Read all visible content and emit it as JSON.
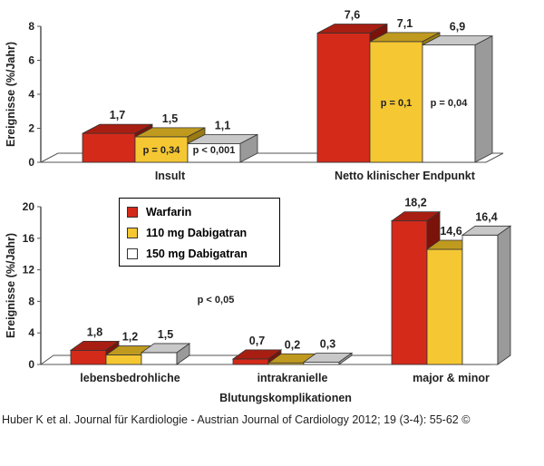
{
  "colors": {
    "warfarin": "#d42a1a",
    "dabi110": "#f5c732",
    "dabi150": "#ffffff"
  },
  "citation": "Huber K et al. Journal für Kardiologie - Austrian Journal of Cardiology 2012; 19 (3-4): 55-62 ©",
  "legend": {
    "items": [
      {
        "label": "Warfarin",
        "color": "#d42a1a"
      },
      {
        "label": "110 mg Dabigatran",
        "color": "#f5c732"
      },
      {
        "label": "150 mg Dabigatran",
        "color": "#ffffff"
      }
    ]
  },
  "chart_data": [
    {
      "type": "bar",
      "ylabel": "Ereignisse (%/Jahr)",
      "ylim": [
        0,
        8
      ],
      "yticks": [
        "0",
        "2",
        "4",
        "6",
        "8"
      ],
      "categories": [
        "Insult",
        "Netto klinischer Endpunkt"
      ],
      "series": [
        {
          "name": "Warfarin",
          "values": [
            1.7,
            7.6
          ],
          "labels": [
            "1,7",
            "7,6"
          ]
        },
        {
          "name": "110 mg Dabigatran",
          "values": [
            1.5,
            7.1
          ],
          "labels": [
            "1,5",
            "7,1"
          ]
        },
        {
          "name": "150 mg Dabigatran",
          "values": [
            1.1,
            6.9
          ],
          "labels": [
            "1,1",
            "6,9"
          ]
        }
      ],
      "annotations": [
        {
          "series": 1,
          "category": 0,
          "text": "p = 0,34"
        },
        {
          "series": 2,
          "category": 0,
          "text": "p < 0,001"
        },
        {
          "series": 1,
          "category": 1,
          "text": "p = 0,1"
        },
        {
          "series": 2,
          "category": 1,
          "text": "p = 0,04"
        }
      ]
    },
    {
      "type": "bar",
      "ylabel": "Ereignisse (%/Jahr)",
      "xlabel": "Blutungskomplikationen",
      "ylim": [
        0,
        20
      ],
      "yticks": [
        "0",
        "4",
        "8",
        "12",
        "16",
        "20"
      ],
      "categories": [
        "lebensbedrohliche",
        "intrakranielle",
        "major & minor"
      ],
      "series": [
        {
          "name": "Warfarin",
          "values": [
            1.8,
            0.7,
            18.2
          ],
          "labels": [
            "1,8",
            "0,7",
            "18,2"
          ]
        },
        {
          "name": "110 mg Dabigatran",
          "values": [
            1.2,
            0.2,
            14.6
          ],
          "labels": [
            "1,2",
            "0,2",
            "14,6"
          ]
        },
        {
          "name": "150 mg Dabigatran",
          "values": [
            1.5,
            0.3,
            16.4
          ],
          "labels": [
            "1,5",
            "0,3",
            "16,4"
          ]
        }
      ],
      "annotations": [
        {
          "text": "p < 0,05"
        }
      ]
    }
  ]
}
